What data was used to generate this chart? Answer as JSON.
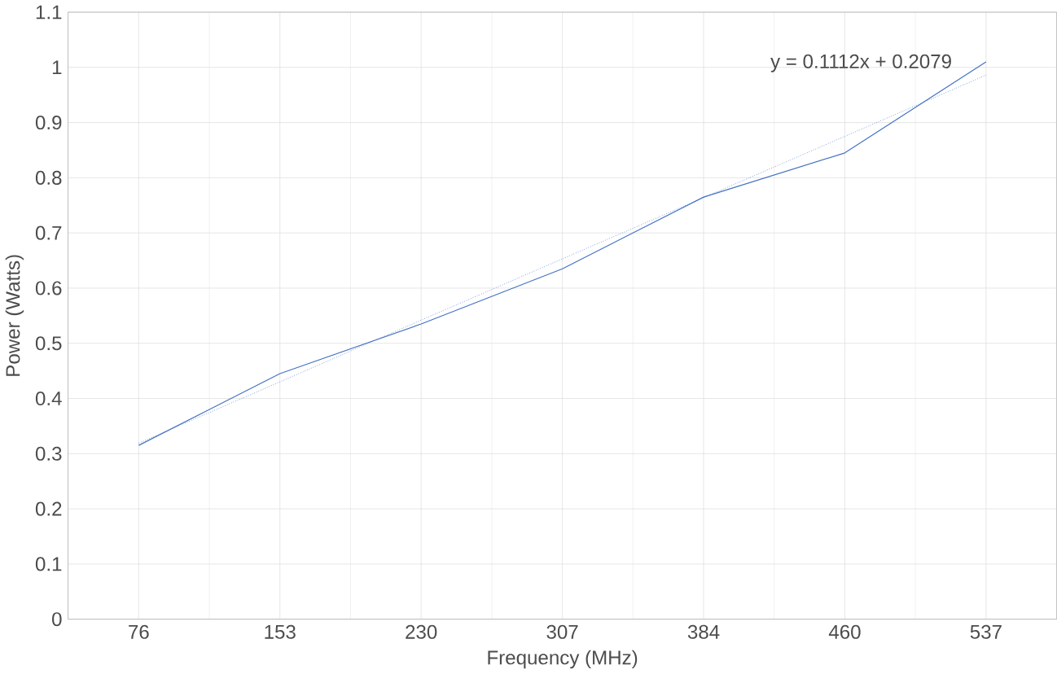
{
  "chart_data": {
    "type": "line",
    "xlabel": "Frequency (MHz)",
    "ylabel": "Power (Watts)",
    "categories": [
      "76",
      "153",
      "230",
      "307",
      "384",
      "460",
      "537"
    ],
    "series": [
      {
        "color": "#4472c4",
        "values": [
          0.315,
          0.445,
          0.535,
          0.635,
          0.765,
          0.845,
          1.01
        ]
      },
      {
        "type": "line",
        "line_style": "dotted",
        "color": "#4472c4",
        "values": [
          0.319,
          0.43,
          0.542,
          0.653,
          0.764,
          0.875,
          0.986
        ]
      }
    ],
    "ylim": [
      0,
      1.1
    ],
    "yticks": [
      0,
      0.1,
      0.2,
      0.3,
      0.4,
      0.5,
      0.6,
      0.7,
      0.8,
      0.9,
      1,
      1.1
    ],
    "grid": true,
    "marker": "none",
    "line_style": "solid",
    "annotations": [
      "y = 0.1112x + 0.2079"
    ]
  }
}
